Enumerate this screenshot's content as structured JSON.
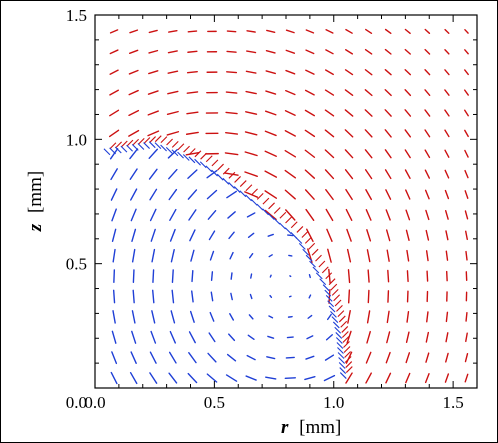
{
  "chart_data": {
    "type": "vector-field",
    "xlabel_var": "r",
    "xlabel_unit": "[mm]",
    "ylabel_var": "z",
    "ylabel_unit": "[mm]",
    "xlim": [
      0,
      1.6
    ],
    "ylim": [
      0,
      1.5
    ],
    "x_ticks": [
      {
        "value": 0.0,
        "label": "0.0"
      },
      {
        "value": 0.5,
        "label": "0.5"
      },
      {
        "value": 1.0,
        "label": "1.0"
      },
      {
        "value": 1.5,
        "label": "1.5"
      }
    ],
    "y_ticks": [
      {
        "value": 0.5,
        "label": "0.5"
      },
      {
        "value": 1.0,
        "label": "1.0"
      },
      {
        "value": 1.5,
        "label": "1.5"
      }
    ],
    "vortex_center": [
      0.8,
      0.42
    ],
    "series": [
      {
        "color": "#1f3fd6",
        "region": "inner"
      },
      {
        "color": "#cc1111",
        "region": "outer"
      }
    ],
    "boundary_curve": [
      [
        0.05,
        0.95
      ],
      [
        0.25,
        0.98
      ],
      [
        0.45,
        0.9
      ],
      [
        0.65,
        0.76
      ],
      [
        0.85,
        0.6
      ],
      [
        0.97,
        0.4
      ],
      [
        1.02,
        0.22
      ],
      [
        1.04,
        0.05
      ]
    ]
  }
}
